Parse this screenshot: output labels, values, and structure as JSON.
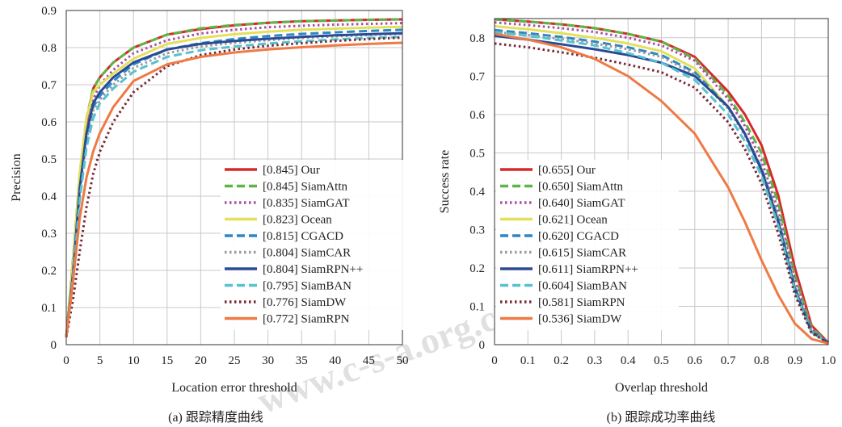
{
  "watermark": "www.c-s-a.org.cn",
  "chart_data": [
    {
      "type": "line",
      "caption": "(a) 跟踪精度曲线",
      "xlabel": "Location error threshold",
      "ylabel": "Precision",
      "xlim": [
        0,
        50
      ],
      "ylim": [
        0,
        0.9
      ],
      "xticks": [
        0,
        5,
        10,
        15,
        20,
        25,
        30,
        35,
        40,
        45,
        50
      ],
      "yticks": [
        0,
        0.1,
        0.2,
        0.3,
        0.4,
        0.5,
        0.6,
        0.7,
        0.8,
        0.9
      ],
      "grid": true,
      "legend_position": "bottom-right",
      "x": [
        0,
        1,
        2,
        3,
        4,
        5,
        7,
        10,
        15,
        20,
        25,
        30,
        35,
        40,
        45,
        50
      ],
      "series": [
        {
          "name": "[0.845] Our",
          "color": "#d7282a",
          "dash": "solid",
          "values": [
            0.02,
            0.22,
            0.45,
            0.6,
            0.69,
            0.72,
            0.76,
            0.8,
            0.835,
            0.85,
            0.86,
            0.867,
            0.871,
            0.873,
            0.875,
            0.876
          ]
        },
        {
          "name": "[0.845] SiamAttn",
          "color": "#5db544",
          "dash": "dashed",
          "values": [
            0.02,
            0.23,
            0.46,
            0.61,
            0.69,
            0.72,
            0.76,
            0.8,
            0.835,
            0.852,
            0.861,
            0.867,
            0.871,
            0.873,
            0.875,
            0.876
          ]
        },
        {
          "name": "[0.835] SiamGAT",
          "color": "#a94ea6",
          "dash": "dotted",
          "values": [
            0.02,
            0.2,
            0.43,
            0.58,
            0.66,
            0.7,
            0.74,
            0.785,
            0.82,
            0.838,
            0.848,
            0.855,
            0.859,
            0.862,
            0.864,
            0.866
          ]
        },
        {
          "name": "[0.823] Ocean",
          "color": "#e3e05a",
          "dash": "solid",
          "values": [
            0.02,
            0.22,
            0.46,
            0.61,
            0.68,
            0.7,
            0.73,
            0.77,
            0.81,
            0.826,
            0.836,
            0.843,
            0.848,
            0.851,
            0.854,
            0.856
          ]
        },
        {
          "name": "[0.815] CGACD",
          "color": "#2d86c8",
          "dash": "dashed",
          "values": [
            0.02,
            0.19,
            0.41,
            0.56,
            0.64,
            0.67,
            0.71,
            0.755,
            0.795,
            0.812,
            0.823,
            0.831,
            0.837,
            0.841,
            0.845,
            0.848
          ]
        },
        {
          "name": "[0.804] SiamCAR",
          "color": "#9a9a9a",
          "dash": "dotted",
          "values": [
            0.02,
            0.18,
            0.4,
            0.55,
            0.63,
            0.66,
            0.7,
            0.745,
            0.785,
            0.803,
            0.813,
            0.82,
            0.826,
            0.83,
            0.834,
            0.837
          ]
        },
        {
          "name": "[0.804] SiamRPN++",
          "color": "#2a4a94",
          "dash": "solid",
          "values": [
            0.02,
            0.19,
            0.42,
            0.57,
            0.65,
            0.68,
            0.72,
            0.76,
            0.795,
            0.81,
            0.818,
            0.824,
            0.829,
            0.833,
            0.836,
            0.839
          ]
        },
        {
          "name": "[0.795] SiamBAN",
          "color": "#56c2d0",
          "dash": "dashed",
          "values": [
            0.02,
            0.18,
            0.39,
            0.53,
            0.61,
            0.65,
            0.69,
            0.735,
            0.775,
            0.793,
            0.803,
            0.811,
            0.817,
            0.822,
            0.826,
            0.829
          ]
        },
        {
          "name": "[0.776] SiamDW",
          "color": "#7a2732",
          "dash": "dotted",
          "values": [
            0.02,
            0.12,
            0.25,
            0.37,
            0.46,
            0.52,
            0.6,
            0.68,
            0.75,
            0.78,
            0.795,
            0.805,
            0.812,
            0.818,
            0.823,
            0.827
          ]
        },
        {
          "name": "[0.772] SiamRPN",
          "color": "#ee7a45",
          "dash": "solid",
          "values": [
            0.02,
            0.17,
            0.34,
            0.45,
            0.52,
            0.57,
            0.64,
            0.71,
            0.755,
            0.775,
            0.787,
            0.795,
            0.801,
            0.806,
            0.81,
            0.813
          ]
        }
      ]
    },
    {
      "type": "line",
      "caption": "(b) 跟踪成功率曲线",
      "xlabel": "Overlap threshold",
      "ylabel": "Success rate",
      "xlim": [
        0,
        1.0
      ],
      "ylim": [
        0,
        0.85
      ],
      "xticks": [
        0,
        0.1,
        0.2,
        0.3,
        0.4,
        0.5,
        0.6,
        0.7,
        0.8,
        0.9,
        1.0
      ],
      "yticks": [
        0,
        0.1,
        0.2,
        0.3,
        0.4,
        0.5,
        0.6,
        0.7,
        0.8
      ],
      "grid": true,
      "legend_position": "bottom-left",
      "x": [
        0,
        0.1,
        0.2,
        0.3,
        0.4,
        0.5,
        0.6,
        0.7,
        0.75,
        0.8,
        0.85,
        0.9,
        0.95,
        1.0
      ],
      "series": [
        {
          "name": "[0.655] Our",
          "color": "#d7282a",
          "dash": "solid",
          "values": [
            0.848,
            0.842,
            0.835,
            0.825,
            0.81,
            0.79,
            0.75,
            0.66,
            0.6,
            0.52,
            0.39,
            0.2,
            0.05,
            0.005
          ]
        },
        {
          "name": "[0.650] SiamAttn",
          "color": "#5db544",
          "dash": "dashed",
          "values": [
            0.848,
            0.842,
            0.835,
            0.825,
            0.81,
            0.79,
            0.745,
            0.65,
            0.58,
            0.5,
            0.37,
            0.18,
            0.045,
            0.005
          ]
        },
        {
          "name": "[0.640] SiamGAT",
          "color": "#a94ea6",
          "dash": "dotted",
          "values": [
            0.84,
            0.833,
            0.825,
            0.815,
            0.8,
            0.78,
            0.74,
            0.64,
            0.57,
            0.48,
            0.35,
            0.17,
            0.04,
            0.005
          ]
        },
        {
          "name": "[0.621] Ocean",
          "color": "#e3e05a",
          "dash": "solid",
          "values": [
            0.83,
            0.822,
            0.812,
            0.8,
            0.785,
            0.765,
            0.72,
            0.62,
            0.55,
            0.46,
            0.33,
            0.15,
            0.035,
            0.005
          ]
        },
        {
          "name": "[0.620] CGACD",
          "color": "#2d86c8",
          "dash": "dashed",
          "values": [
            0.82,
            0.812,
            0.802,
            0.79,
            0.775,
            0.755,
            0.71,
            0.62,
            0.55,
            0.46,
            0.33,
            0.15,
            0.035,
            0.005
          ]
        },
        {
          "name": "[0.615] SiamCAR",
          "color": "#9a9a9a",
          "dash": "dotted",
          "values": [
            0.815,
            0.807,
            0.797,
            0.785,
            0.77,
            0.75,
            0.705,
            0.615,
            0.545,
            0.455,
            0.325,
            0.148,
            0.034,
            0.005
          ]
        },
        {
          "name": "[0.611] SiamRPN++",
          "color": "#2a4a94",
          "dash": "solid",
          "values": [
            0.805,
            0.795,
            0.783,
            0.77,
            0.755,
            0.735,
            0.7,
            0.62,
            0.55,
            0.455,
            0.32,
            0.145,
            0.033,
            0.005
          ]
        },
        {
          "name": "[0.604] SiamBAN",
          "color": "#56c2d0",
          "dash": "dashed",
          "values": [
            0.815,
            0.805,
            0.793,
            0.78,
            0.76,
            0.735,
            0.69,
            0.6,
            0.53,
            0.44,
            0.31,
            0.14,
            0.032,
            0.005
          ]
        },
        {
          "name": "[0.581] SiamRPN",
          "color": "#7a2732",
          "dash": "dotted",
          "values": [
            0.785,
            0.775,
            0.762,
            0.748,
            0.73,
            0.71,
            0.67,
            0.58,
            0.51,
            0.42,
            0.29,
            0.13,
            0.03,
            0.005
          ]
        },
        {
          "name": "[0.536] SiamDW",
          "color": "#ee7a45",
          "dash": "solid",
          "values": [
            0.81,
            0.795,
            0.775,
            0.745,
            0.7,
            0.635,
            0.55,
            0.41,
            0.32,
            0.22,
            0.13,
            0.055,
            0.015,
            0.003
          ]
        }
      ]
    }
  ]
}
